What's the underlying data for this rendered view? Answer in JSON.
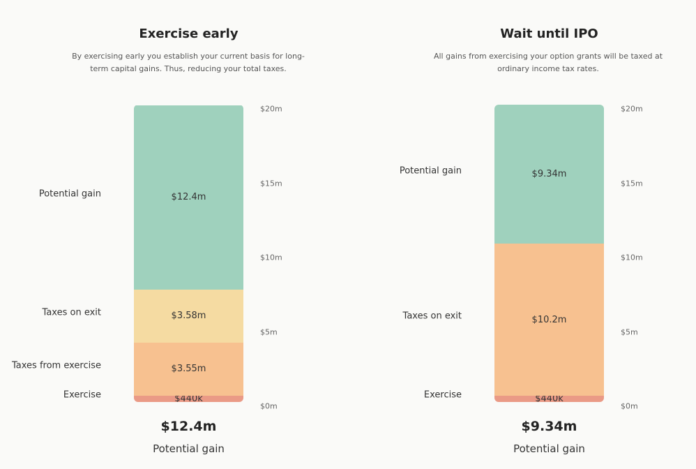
{
  "chart_data": [
    {
      "type": "bar",
      "stacked": true,
      "title": "Exercise early",
      "subtitle": "By exercising early you establish your current basis for long-term capital gains. Thus, reducing your total taxes.",
      "ylim": [
        0,
        20
      ],
      "yticks": [
        "$0m",
        "$5m",
        "$10m",
        "$15m",
        "$20m"
      ],
      "segments": [
        {
          "label": "Exercise",
          "value": 0.44,
          "display": "$440k",
          "color": "#ea9a86"
        },
        {
          "label": "Taxes from exercise",
          "value": 3.55,
          "display": "$3.55m",
          "color": "#f7c190"
        },
        {
          "label": "Taxes on exit",
          "value": 3.58,
          "display": "$3.58m",
          "color": "#f5dba2"
        },
        {
          "label": "Potential gain",
          "value": 12.4,
          "display": "$12.4m",
          "color": "#9fd1bd"
        }
      ],
      "total_value": "$12.4m",
      "total_label": "Potential gain"
    },
    {
      "type": "bar",
      "stacked": true,
      "title": "Wait until IPO",
      "subtitle": "All gains from exercising your option grants will be taxed at ordinary income tax rates.",
      "ylim": [
        0,
        20
      ],
      "yticks": [
        "$0m",
        "$5m",
        "$10m",
        "$15m",
        "$20m"
      ],
      "segments": [
        {
          "label": "Exercise",
          "value": 0.44,
          "display": "$440k",
          "color": "#ea9a86"
        },
        {
          "label": "Taxes on exit",
          "value": 10.2,
          "display": "$10.2m",
          "color": "#f7c190"
        },
        {
          "label": "Potential gain",
          "value": 9.34,
          "display": "$9.34m",
          "color": "#9fd1bd"
        }
      ],
      "total_value": "$9.34m",
      "total_label": "Potential gain"
    }
  ]
}
